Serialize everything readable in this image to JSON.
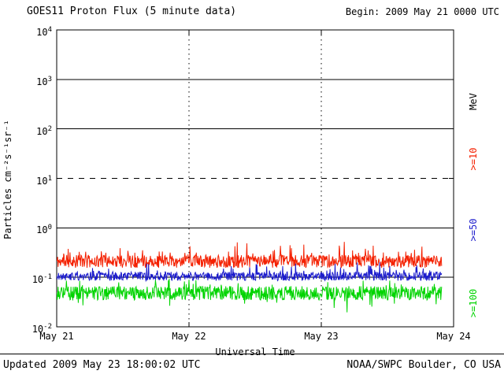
{
  "header": {
    "title": "GOES11 Proton Flux (5 minute data)",
    "begin": "Begin: 2009 May 21 0000 UTC"
  },
  "footer": {
    "updated": "Updated 2009 May 23 18:00:02 UTC",
    "credit": "NOAA/SWPC Boulder, CO USA"
  },
  "chart_data": {
    "type": "line",
    "title": "GOES11 Proton Flux (5 minute data)",
    "xlabel": "Universal Time",
    "ylabel": "Particles cm⁻²s⁻¹sr⁻¹",
    "right_axis_label": "MeV",
    "y_scale": "log",
    "ylim": [
      0.01,
      10000
    ],
    "y_tick_exponents": [
      4,
      3,
      2,
      1,
      0,
      -1,
      -2
    ],
    "x_ticks": [
      "May 21",
      "May 22",
      "May 23",
      "May 24"
    ],
    "x_days": 3,
    "points_per_day": 288,
    "data_end_fraction": 0.97,
    "grid": {
      "h_solid_exponents": [
        3,
        2,
        0,
        -1
      ],
      "h_dashed_exponents": [
        1
      ],
      "v_dashed_days": [
        1,
        2
      ]
    },
    "series": [
      {
        "name": ">=10",
        "color": "#f42000",
        "baseline_flux": 0.21,
        "approx_range": [
          0.12,
          0.5
        ],
        "log_noise_amp": 0.13,
        "spike_prob": 0.1,
        "spike_amp": 0.3,
        "seed": 11
      },
      {
        "name": ">=50",
        "color": "#1c1ccc",
        "baseline_flux": 0.105,
        "approx_range": [
          0.07,
          0.25
        ],
        "log_noise_amp": 0.09,
        "spike_prob": 0.07,
        "spike_amp": 0.22,
        "seed": 22
      },
      {
        "name": ">=100",
        "color": "#00d400",
        "baseline_flux": 0.048,
        "approx_range": [
          0.02,
          0.1
        ],
        "log_noise_amp": 0.14,
        "spike_prob": 0.07,
        "spike_amp": 0.2,
        "dip_prob": 0.06,
        "dip_amp": 0.3,
        "seed": 33
      }
    ]
  }
}
